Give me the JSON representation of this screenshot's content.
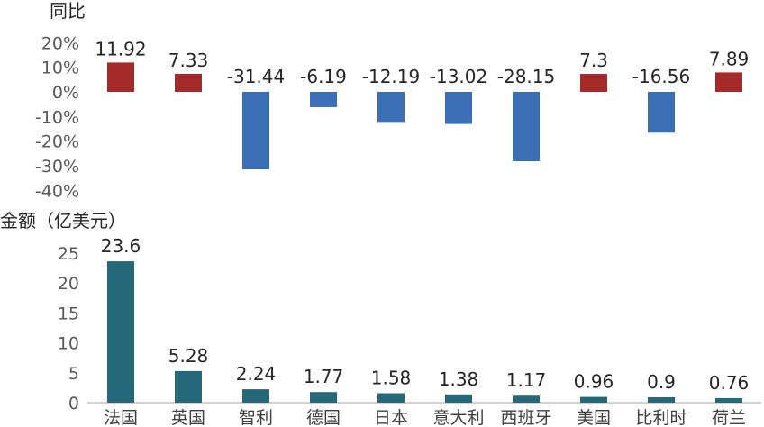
{
  "chart_data": [
    {
      "type": "bar",
      "ylabel": "同比",
      "categories": [
        "法国",
        "英国",
        "智利",
        "德国",
        "日本",
        "意大利",
        "西班牙",
        "美国",
        "比利时",
        "荷兰"
      ],
      "values": [
        11.92,
        7.33,
        -31.44,
        -6.19,
        -12.19,
        -13.02,
        -28.15,
        7.3,
        -16.56,
        7.89
      ],
      "value_labels": [
        "11.92",
        "7.33",
        "-31.44",
        "-6.19",
        "-12.19",
        "-13.02",
        "-28.15",
        "7.3",
        "-16.56",
        "7.89"
      ],
      "yticks": [
        "20%",
        "10%",
        "0%",
        "-10%",
        "-20%",
        "-30%",
        "-40%"
      ],
      "ylim": [
        -40,
        20
      ],
      "colors": {
        "positive": "#A52A2A",
        "negative": "#3A6FB5"
      },
      "grid": false
    },
    {
      "type": "bar",
      "ylabel": "金额（亿美元）",
      "categories": [
        "法国",
        "英国",
        "智利",
        "德国",
        "日本",
        "意大利",
        "西班牙",
        "美国",
        "比利时",
        "荷兰"
      ],
      "values": [
        23.6,
        5.28,
        2.24,
        1.77,
        1.58,
        1.38,
        1.17,
        0.96,
        0.9,
        0.76
      ],
      "value_labels": [
        "23.6",
        "5.28",
        "2.24",
        "1.77",
        "1.58",
        "1.38",
        "1.17",
        "0.96",
        "0.9",
        "0.76"
      ],
      "yticks": [
        "25",
        "20",
        "15",
        "10",
        "5",
        "0"
      ],
      "ylim": [
        0,
        25
      ],
      "colors": {
        "bar": "#25687A",
        "axis": "#A6A6A6"
      },
      "grid": false
    }
  ]
}
